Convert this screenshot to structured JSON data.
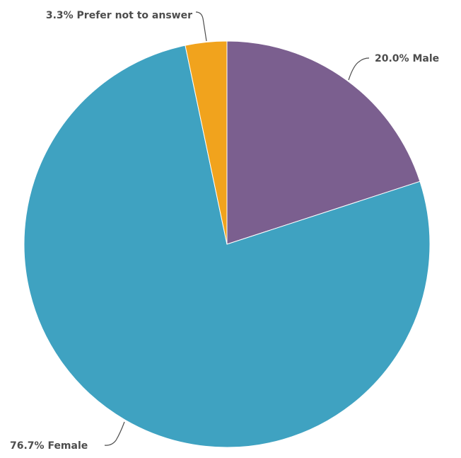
{
  "chart_data": {
    "type": "pie",
    "slices": [
      {
        "label": "Male",
        "value": 20.0,
        "display": "20.0% Male",
        "color": "#7b5f8f"
      },
      {
        "label": "Female",
        "value": 76.7,
        "display": "76.7% Female",
        "color": "#3fa2c1"
      },
      {
        "label": "Prefer not to answer",
        "value": 3.3,
        "display": "3.3% Prefer not to answer",
        "color": "#f1a31d"
      }
    ],
    "title": "",
    "legend": "none",
    "start_angle": "12 o'clock, clockwise"
  }
}
